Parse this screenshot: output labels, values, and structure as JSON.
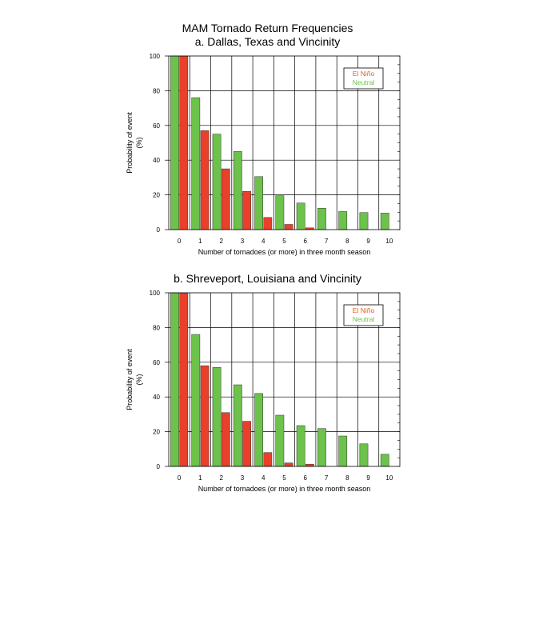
{
  "figure_title": "MAM Tornado Return Frequencies",
  "colors": {
    "el_nino": "#e8402a",
    "neutral": "#6cc24a",
    "el_nino_text": "#e06020",
    "neutral_text": "#6cc24a"
  },
  "chart_data": [
    {
      "type": "bar",
      "title": "a. Dallas, Texas and Vincinity",
      "xlabel": "Number of tornadoes (or more) in three month season",
      "ylabel": "Probability of event",
      "ylabel_unit": "(%)",
      "ylim": [
        0,
        100
      ],
      "yticks": [
        "0",
        "20",
        "40",
        "60",
        "80",
        "100"
      ],
      "categories": [
        "0",
        "1",
        "2",
        "3",
        "4",
        "5",
        "6",
        "7",
        "8",
        "9",
        "10"
      ],
      "legend_position": "top-right",
      "series": [
        {
          "name": "Neutral",
          "values": [
            100,
            76,
            55,
            45,
            30.5,
            19.5,
            15.3,
            12.3,
            10.4,
            9.8,
            9.5
          ]
        },
        {
          "name": "El Niño",
          "values": [
            100,
            57,
            35,
            22,
            7,
            3,
            1,
            0,
            0,
            0,
            0
          ]
        }
      ]
    },
    {
      "type": "bar",
      "title": "b. Shreveport, Louisiana and Vincinity",
      "xlabel": "Number of tornadoes (or more) in three month season",
      "ylabel": "Probability of event",
      "ylabel_unit": "(%)",
      "ylim": [
        0,
        100
      ],
      "yticks": [
        "0",
        "20",
        "40",
        "60",
        "80",
        "100"
      ],
      "categories": [
        "0",
        "1",
        "2",
        "3",
        "4",
        "5",
        "6",
        "7",
        "8",
        "9",
        "10"
      ],
      "legend_position": "top-right",
      "series": [
        {
          "name": "Neutral",
          "values": [
            100,
            76,
            57,
            47,
            42,
            29.5,
            23.5,
            21.8,
            17.5,
            13,
            7
          ]
        },
        {
          "name": "El Niño",
          "values": [
            100,
            58,
            31,
            26,
            8,
            2,
            1.3,
            0,
            0,
            0,
            0
          ]
        }
      ]
    }
  ]
}
